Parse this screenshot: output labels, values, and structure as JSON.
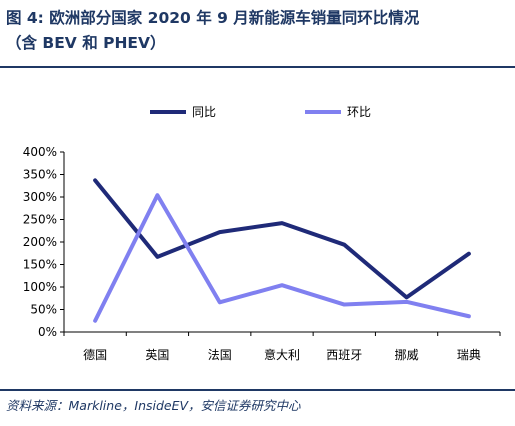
{
  "header": {
    "title_line1": "图 4: 欧洲部分国家 2020 年 9 月新能源车销量同环比情况",
    "title_line2": "（含 BEV 和 PHEV）"
  },
  "footer": {
    "source": "资料来源：Markline，InsideEV，安信证券研究中心"
  },
  "chart_data": {
    "type": "line",
    "title": "",
    "xlabel": "",
    "ylabel": "",
    "categories": [
      "德国",
      "英国",
      "法国",
      "意大利",
      "西班牙",
      "挪威",
      "瑞典"
    ],
    "ylim": [
      0,
      400
    ],
    "yticks": [
      0,
      50,
      100,
      150,
      200,
      250,
      300,
      350,
      400
    ],
    "ytick_labels": [
      "0%",
      "50%",
      "100%",
      "150%",
      "200%",
      "250%",
      "300%",
      "350%",
      "400%"
    ],
    "grid": false,
    "legend_position": "top-center",
    "series": [
      {
        "name": "同比",
        "color": "#1f2a78",
        "values": [
          337,
          167,
          222,
          242,
          194,
          77,
          174
        ]
      },
      {
        "name": "环比",
        "color": "#8080f0",
        "values": [
          25,
          304,
          66,
          104,
          61,
          67,
          35
        ]
      }
    ]
  }
}
